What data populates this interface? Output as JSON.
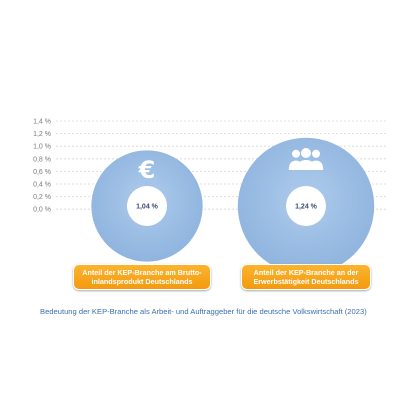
{
  "chart_data": {
    "type": "bubble",
    "y_ticks": [
      "1,4 %",
      "1,2 %",
      "1,0 %",
      "0,8 %",
      "0,6 %",
      "0,4 %",
      "0,2 %",
      "0,0 %"
    ],
    "y_values": [
      1.4,
      1.2,
      1.0,
      0.8,
      0.6,
      0.4,
      0.2,
      0.0
    ],
    "categories": [
      "Anteil der KEP-Branche am Brutto-inlandsprodukt Deutschlands",
      "Anteil der KEP-Branche an der Erwerbstätigkeit Deutschlands"
    ],
    "values": [
      1.04,
      1.24
    ],
    "value_labels": [
      "1,04 %",
      "1,24 %"
    ],
    "icons": [
      "euro-icon",
      "people-group-icon"
    ],
    "grid": true,
    "colors": {
      "bubble": "#9ec0e6",
      "hole": "#ffffff",
      "box": "#f7a51e",
      "caption": "#3a6fb0"
    }
  },
  "caption": "Bedeutung der KEP-Branche als Arbeit- und Auftraggeber für die deutsche Volkswirtschaft (2023)",
  "labels": {
    "box_0": "Anteil der KEP-Branche am Brutto-\ninlandsprodukt Deutschlands",
    "box_1": "Anteil der KEP-Branche an der\nErwerbstätigkeit Deutschlands"
  }
}
